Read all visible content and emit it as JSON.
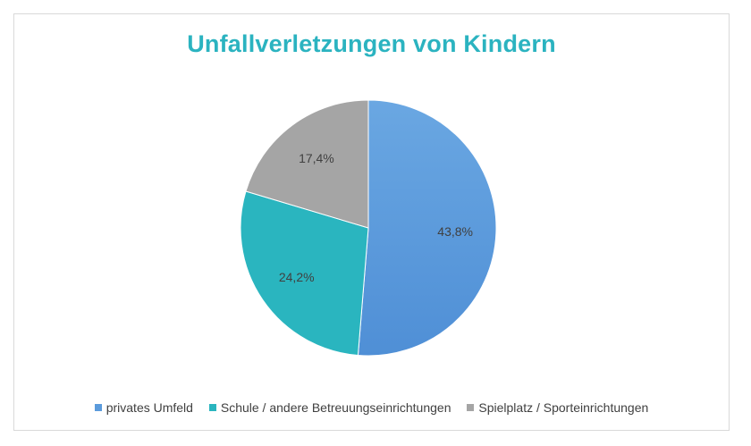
{
  "chart_data": {
    "type": "pie",
    "title": "Unfallverletzungen von Kindern",
    "slices": [
      {
        "label": "privates Umfeld",
        "value": 43.8,
        "value_label": "43,8%",
        "color": "#5b9bdc"
      },
      {
        "label": "Schule / andere Betreuungseinrichtungen",
        "value": 24.2,
        "value_label": "24,2%",
        "color": "#2ab5bf"
      },
      {
        "label": "Spielplatz / Sporteinrichtungen",
        "value": 17.4,
        "value_label": "17,4%",
        "color": "#a5a5a5"
      }
    ],
    "legend_position": "bottom",
    "title_color": "#2bb3c0",
    "label_color": "#404040"
  }
}
